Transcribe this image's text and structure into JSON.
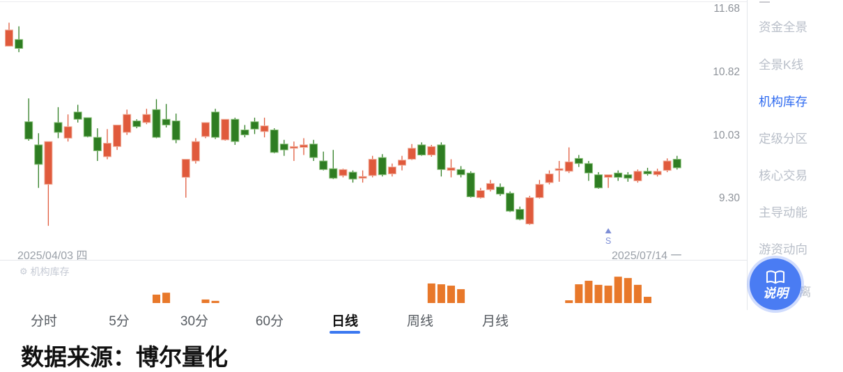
{
  "y_axis": {
    "ticks": [
      "11.68",
      "10.82",
      "10.03",
      "9.30"
    ]
  },
  "x_axis": {
    "start_label": "2025/04/03 四",
    "end_label": "2025/07/14 一"
  },
  "sidebar": {
    "items": [
      {
        "label": "资金全景",
        "active": false
      },
      {
        "label": "全景K线",
        "active": false
      },
      {
        "label": "机构库存",
        "active": true
      },
      {
        "label": "定级分区",
        "active": false
      },
      {
        "label": "核心交易",
        "active": false
      },
      {
        "label": "主导动能",
        "active": false
      },
      {
        "label": "游资动向",
        "active": false
      },
      {
        "label": "离",
        "active": false
      }
    ]
  },
  "help_button": {
    "label": "说明"
  },
  "subchart": {
    "label": "机构库存"
  },
  "tabs": {
    "items": [
      {
        "label": "分时",
        "active": false
      },
      {
        "label": "5分",
        "active": false
      },
      {
        "label": "30分",
        "active": false
      },
      {
        "label": "60分",
        "active": false
      },
      {
        "label": "日线",
        "active": true
      },
      {
        "label": "周线",
        "active": false
      },
      {
        "label": "月线",
        "active": false
      }
    ]
  },
  "footer": {
    "source_text": "数据来源：博尔量化"
  },
  "colors": {
    "up": "#e05a3c",
    "up_stroke": "#f0b2a0",
    "down": "#2e7d22",
    "down_stroke": "#8bc17b",
    "inventory_bar": "#e8782a",
    "accent_blue": "#2e6af0",
    "signal_blue": "#7d8ed6",
    "axis_text": "#8e939a",
    "menu_inactive": "#b9bfc9",
    "divider": "#e4e6ea"
  },
  "chart_data": {
    "type": "candlestick",
    "x_range": [
      "2025/04/03 四",
      "2025/07/14 一"
    ],
    "y_ticks": [
      11.68,
      10.82,
      10.03,
      9.3
    ],
    "y_scale": "log",
    "legend": "机构库存",
    "candles": [
      [
        11.17,
        11.49,
        11.17,
        11.39
      ],
      [
        11.26,
        11.44,
        11.09,
        11.14
      ],
      [
        10.2,
        10.49,
        9.97,
        9.99
      ],
      [
        9.92,
        10.06,
        9.42,
        9.69
      ],
      [
        9.46,
        9.96,
        9.0,
        9.96
      ],
      [
        10.19,
        10.38,
        10.0,
        10.07
      ],
      [
        10.0,
        10.29,
        9.96,
        10.14
      ],
      [
        10.32,
        10.41,
        10.19,
        10.23
      ],
      [
        10.25,
        10.25,
        10.01,
        10.02
      ],
      [
        10.01,
        10.12,
        9.73,
        9.85
      ],
      [
        9.78,
        10.11,
        9.75,
        9.94
      ],
      [
        9.9,
        10.16,
        9.86,
        10.16
      ],
      [
        10.07,
        10.35,
        10.04,
        10.29
      ],
      [
        10.21,
        10.23,
        10.12,
        10.14
      ],
      [
        10.19,
        10.36,
        10.17,
        10.29
      ],
      [
        10.35,
        10.48,
        10.0,
        10.01
      ],
      [
        10.23,
        10.42,
        10.13,
        10.16
      ],
      [
        10.21,
        10.3,
        9.94,
        9.98
      ],
      [
        9.54,
        9.75,
        9.31,
        9.75
      ],
      [
        9.73,
        10.0,
        9.7,
        9.96
      ],
      [
        10.02,
        10.19,
        10.0,
        10.19
      ],
      [
        10.32,
        10.36,
        9.99,
        10.01
      ],
      [
        9.98,
        10.23,
        9.97,
        10.23
      ],
      [
        10.23,
        10.25,
        9.92,
        9.96
      ],
      [
        10.1,
        10.16,
        10.01,
        10.04
      ],
      [
        10.2,
        10.25,
        10.05,
        10.11
      ],
      [
        10.08,
        10.25,
        10.01,
        10.15
      ],
      [
        10.1,
        10.12,
        9.82,
        9.83
      ],
      [
        9.93,
        9.98,
        9.79,
        9.86
      ],
      [
        9.88,
        9.96,
        9.73,
        9.9
      ],
      [
        9.89,
        10.0,
        9.8,
        9.92
      ],
      [
        9.93,
        9.98,
        9.73,
        9.77
      ],
      [
        9.73,
        9.84,
        9.62,
        9.63
      ],
      [
        9.64,
        9.86,
        9.52,
        9.53
      ],
      [
        9.56,
        9.64,
        9.54,
        9.63
      ],
      [
        9.6,
        9.62,
        9.48,
        9.52
      ],
      [
        9.53,
        9.62,
        9.48,
        9.55
      ],
      [
        9.56,
        9.79,
        9.54,
        9.75
      ],
      [
        9.77,
        9.81,
        9.55,
        9.57
      ],
      [
        9.58,
        9.7,
        9.55,
        9.66
      ],
      [
        9.68,
        9.79,
        9.62,
        9.74
      ],
      [
        9.75,
        9.93,
        9.74,
        9.88
      ],
      [
        9.92,
        9.95,
        9.79,
        9.8
      ],
      [
        9.8,
        9.92,
        9.78,
        9.9
      ],
      [
        9.92,
        9.95,
        9.55,
        9.63
      ],
      [
        9.62,
        9.75,
        9.54,
        9.65
      ],
      [
        9.63,
        9.67,
        9.54,
        9.57
      ],
      [
        9.59,
        9.61,
        9.31,
        9.32
      ],
      [
        9.31,
        9.42,
        9.3,
        9.39
      ],
      [
        9.4,
        9.51,
        9.38,
        9.47
      ],
      [
        9.43,
        9.47,
        9.33,
        9.35
      ],
      [
        9.36,
        9.38,
        9.15,
        9.16
      ],
      [
        9.18,
        9.21,
        9.06,
        9.07
      ],
      [
        9.02,
        9.33,
        9.01,
        9.31
      ],
      [
        9.31,
        9.51,
        9.3,
        9.46
      ],
      [
        9.48,
        9.62,
        9.46,
        9.58
      ],
      [
        9.62,
        9.73,
        9.49,
        9.64
      ],
      [
        9.61,
        9.89,
        9.59,
        9.72
      ],
      [
        9.76,
        9.8,
        9.66,
        9.7
      ],
      [
        9.7,
        9.73,
        9.5,
        9.59
      ],
      [
        9.57,
        9.6,
        9.41,
        9.42
      ],
      [
        9.54,
        9.57,
        9.42,
        9.57
      ],
      [
        9.59,
        9.62,
        9.5,
        9.54
      ],
      [
        9.57,
        9.6,
        9.49,
        9.53
      ],
      [
        9.5,
        9.63,
        9.48,
        9.61
      ],
      [
        9.61,
        9.65,
        9.56,
        9.58
      ],
      [
        9.57,
        9.64,
        9.55,
        9.61
      ],
      [
        9.62,
        9.76,
        9.6,
        9.73
      ],
      [
        9.75,
        9.79,
        9.63,
        9.65
      ]
    ],
    "inventory": [
      0,
      0,
      0,
      0,
      0,
      0,
      0,
      0,
      0,
      0,
      0,
      0,
      0,
      0,
      0,
      31,
      38,
      0,
      0,
      0,
      13,
      8,
      0,
      0,
      0,
      0,
      0,
      0,
      0,
      0,
      0,
      0,
      0,
      0,
      0,
      0,
      0,
      0,
      0,
      0,
      0,
      0,
      0,
      72,
      69,
      64,
      51,
      0,
      0,
      0,
      0,
      0,
      0,
      0,
      0,
      0,
      0,
      10,
      69,
      82,
      67,
      64,
      97,
      92,
      67,
      23,
      0,
      0,
      0
    ],
    "signal": {
      "index": 61,
      "label": "S"
    }
  }
}
